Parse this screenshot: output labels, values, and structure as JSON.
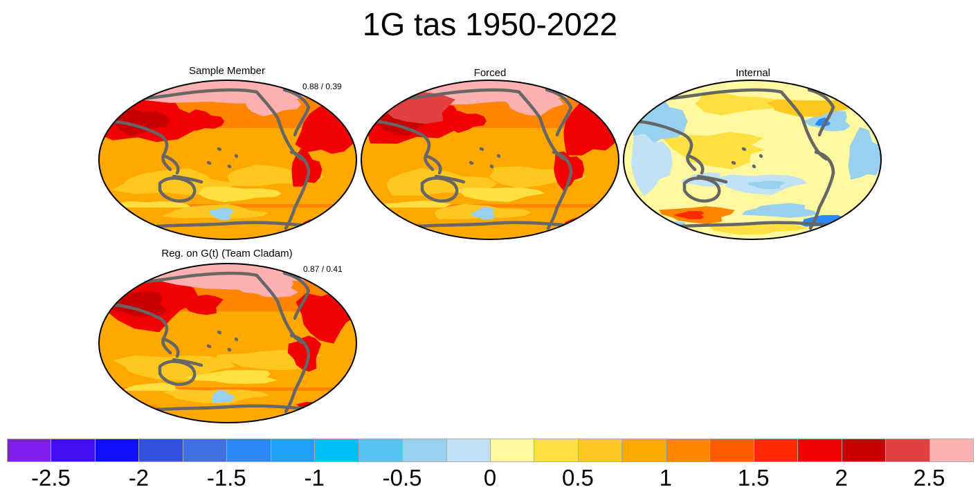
{
  "title": "1G tas 1950-2022",
  "panels": [
    {
      "name": "sample-member",
      "title": "Sample Member",
      "stat": "0.88 / 0.39",
      "base": "warm",
      "variant": 0
    },
    {
      "name": "forced",
      "title": "Forced",
      "stat": "",
      "base": "warm",
      "variant": 1
    },
    {
      "name": "internal",
      "title": "Internal",
      "stat": "",
      "base": "neutral",
      "variant": 2
    },
    {
      "name": "regression",
      "title": "Reg. on G(t) (Team Cladam)",
      "stat": "0.87 / 0.41",
      "base": "warm",
      "variant": 3
    }
  ],
  "colorbar": {
    "colors": [
      "#8020f0",
      "#4010f0",
      "#1010f8",
      "#3050e0",
      "#4070e0",
      "#2a88f8",
      "#20a0f8",
      "#00c0f8",
      "#58c4f4",
      "#98d0f0",
      "#c0e2f4",
      "#fff8a0",
      "#ffe040",
      "#ffc820",
      "#ffa800",
      "#ff8400",
      "#ff5c00",
      "#ff2a00",
      "#f00000",
      "#c80000",
      "#e04040",
      "#ffb0b0"
    ],
    "tick_labels": [
      "-2.5",
      "-2",
      "-1.5",
      "-1",
      "-0.5",
      "0",
      "0.5",
      "1",
      "1.5",
      "2",
      "2.5"
    ],
    "tick_positions": [
      1,
      3,
      5,
      7,
      9,
      11,
      13,
      15,
      17,
      19,
      21
    ]
  },
  "icons": {
    "coastline_color": "#666666"
  }
}
